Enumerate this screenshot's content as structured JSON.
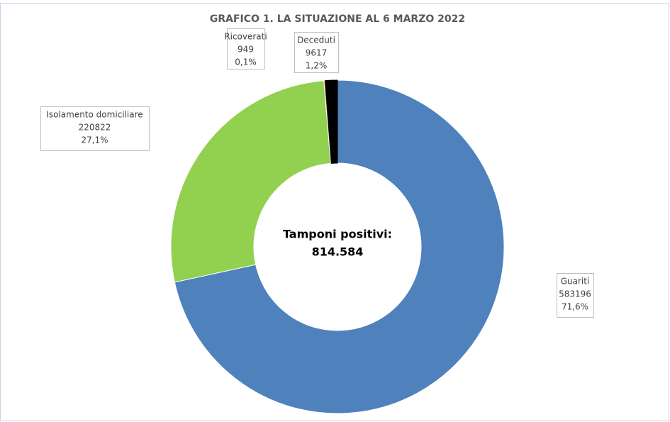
{
  "chart_data": {
    "type": "donut",
    "title": "GRAFICO 1. LA SITUAZIONE AL 6 MARZO 2022",
    "center_title": "Tamponi positivi:",
    "center_value": "814.584",
    "categories": [
      "Guariti",
      "Isolamento domiciliare",
      "Ricoverati",
      "Deceduti"
    ],
    "values": [
      583196,
      220822,
      949,
      9617
    ],
    "percentages": [
      {
        "value": 71.6,
        "label": "71,6%"
      },
      {
        "value": 27.1,
        "label": "27,1%"
      },
      {
        "value": 0.1,
        "label": "0,1%"
      },
      {
        "value": 1.2,
        "label": "1,2%"
      }
    ],
    "colors": [
      "#4f81bd",
      "#92d050",
      "#e46c0a",
      "#000000"
    ]
  }
}
